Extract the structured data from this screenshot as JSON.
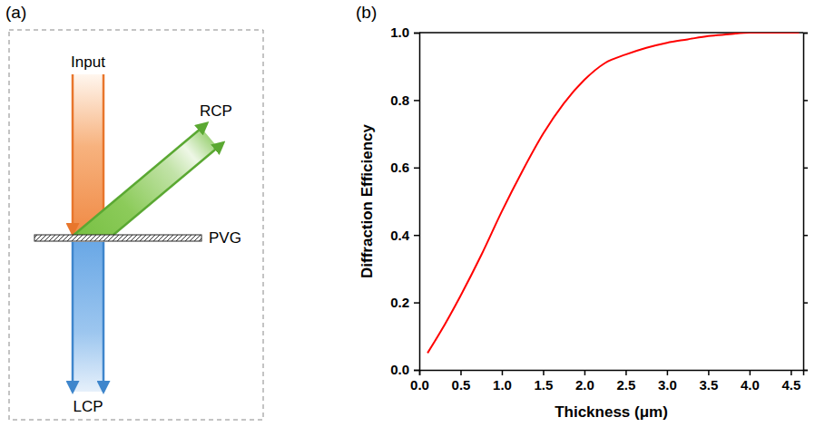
{
  "diagram": {
    "panel_label": "(a)",
    "input": "Input",
    "rcp": "RCP",
    "lcp": "LCP",
    "grating": "PVG"
  },
  "chart_data": {
    "panel_label": "(b)",
    "type": "line",
    "x_label": "Thickness (μm)",
    "y_label": "Diffraction Efficiency",
    "x": [
      0.1,
      0.25,
      0.5,
      0.75,
      1.0,
      1.25,
      1.5,
      1.75,
      2.0,
      2.25,
      2.5,
      2.75,
      3.0,
      3.25,
      3.5,
      3.75,
      4.0,
      4.25,
      4.6
    ],
    "values": [
      0.05,
      0.11,
      0.22,
      0.34,
      0.47,
      0.59,
      0.7,
      0.79,
      0.86,
      0.91,
      0.935,
      0.955,
      0.97,
      0.98,
      0.99,
      0.995,
      1.0,
      1.0,
      1.0
    ],
    "color": "#ff0000",
    "xlim": [
      0,
      4.65
    ],
    "xticks": [
      {
        "value": 0,
        "label": "0.0"
      },
      0.5,
      {
        "value": 1,
        "label": "1.0"
      },
      1.5,
      {
        "value": 2,
        "label": "2.0"
      },
      2.5,
      {
        "value": 3,
        "label": "3.0"
      },
      3.5,
      {
        "value": 4,
        "label": "4.0"
      },
      4.5
    ],
    "ylim": [
      0,
      1
    ],
    "yticks": [
      {
        "value": 0,
        "label": "0.0"
      },
      0.2,
      0.4,
      0.6,
      0.8,
      {
        "value": 1,
        "label": "1.0"
      }
    ],
    "grid": false
  }
}
